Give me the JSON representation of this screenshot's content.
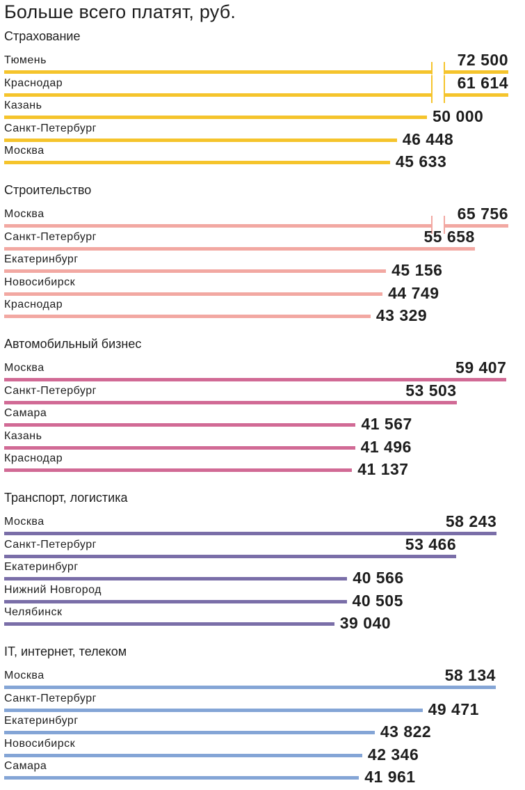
{
  "chart_data": {
    "type": "bar",
    "orientation": "horizontal",
    "title": "Больше всего платят, руб.",
    "axis_break_above": 60000,
    "groups": [
      {
        "name": "Страхование",
        "color": "#f5c42c",
        "categories": [
          "Тюмень",
          "Краснодар",
          "Казань",
          "Санкт-Петербург",
          "Москва"
        ],
        "values": [
          72500,
          61614,
          50000,
          46448,
          45633
        ],
        "labels": [
          "72 500",
          "61 614",
          "50 000",
          "46 448",
          "45 633"
        ]
      },
      {
        "name": "Строительство",
        "color": "#f2a8a2",
        "categories": [
          "Москва",
          "Санкт-Петербург",
          "Екатеринбург",
          "Новосибирск",
          "Краснодар"
        ],
        "values": [
          65756,
          55658,
          45156,
          44749,
          43329
        ],
        "labels": [
          "65 756",
          "55 658",
          "45 156",
          "44 749",
          "43 329"
        ]
      },
      {
        "name": "Автомобильный бизнес",
        "color": "#d16a95",
        "categories": [
          "Москва",
          "Санкт-Петербург",
          "Самара",
          "Казань",
          "Краснодар"
        ],
        "values": [
          59407,
          53503,
          41567,
          41496,
          41137
        ],
        "labels": [
          "59 407",
          "53 503",
          "41 567",
          "41 496",
          "41 137"
        ]
      },
      {
        "name": "Транспорт, логистика",
        "color": "#7a6ea8",
        "categories": [
          "Москва",
          "Санкт-Петербург",
          "Екатеринбург",
          "Нижний Новгород",
          "Челябинск"
        ],
        "values": [
          58243,
          53466,
          40566,
          40505,
          39040
        ],
        "labels": [
          "58 243",
          "53 466",
          "40 566",
          "40 505",
          "39 040"
        ]
      },
      {
        "name": "IT, интернет, телеком",
        "color": "#84a5d6",
        "categories": [
          "Москва",
          "Санкт-Петербург",
          "Екатеринбург",
          "Новосибирск",
          "Самара"
        ],
        "values": [
          58134,
          49471,
          43822,
          42346,
          41961
        ],
        "labels": [
          "58 134",
          "49 471",
          "43 822",
          "42 346",
          "41 961"
        ]
      }
    ]
  }
}
